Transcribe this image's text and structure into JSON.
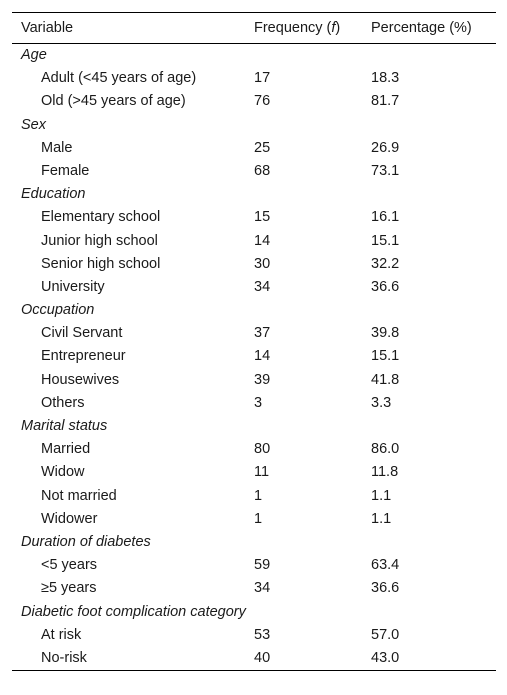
{
  "table": {
    "headers": {
      "variable": "Variable",
      "frequency_prefix": "Frequency (",
      "frequency_symbol": "f",
      "frequency_suffix": ")",
      "percentage": "Percentage (%)"
    },
    "groups": [
      {
        "label": "Age",
        "rows": [
          {
            "label": "Adult (<45 years of age)",
            "frequency": "17",
            "percentage": "18.3"
          },
          {
            "label": "Old (>45 years of age)",
            "frequency": "76",
            "percentage": "81.7"
          }
        ]
      },
      {
        "label": "Sex",
        "rows": [
          {
            "label": "Male",
            "frequency": "25",
            "percentage": "26.9"
          },
          {
            "label": "Female",
            "frequency": "68",
            "percentage": "73.1"
          }
        ]
      },
      {
        "label": "Education",
        "rows": [
          {
            "label": "Elementary school",
            "frequency": "15",
            "percentage": "16.1"
          },
          {
            "label": "Junior high school",
            "frequency": "14",
            "percentage": "15.1"
          },
          {
            "label": "Senior high school",
            "frequency": "30",
            "percentage": "32.2"
          },
          {
            "label": "University",
            "frequency": "34",
            "percentage": "36.6"
          }
        ]
      },
      {
        "label": "Occupation",
        "rows": [
          {
            "label": "Civil Servant",
            "frequency": "37",
            "percentage": "39.8"
          },
          {
            "label": "Entrepreneur",
            "frequency": "14",
            "percentage": "15.1"
          },
          {
            "label": "Housewives",
            "frequency": "39",
            "percentage": "41.8"
          },
          {
            "label": "Others",
            "frequency": "3",
            "percentage": "3.3"
          }
        ]
      },
      {
        "label": "Marital status",
        "rows": [
          {
            "label": "Married",
            "frequency": "80",
            "percentage": "86.0"
          },
          {
            "label": "Widow",
            "frequency": "11",
            "percentage": "11.8"
          },
          {
            "label": "Not married",
            "frequency": "1",
            "percentage": "1.1"
          },
          {
            "label": "Widower",
            "frequency": "1",
            "percentage": "1.1"
          }
        ]
      },
      {
        "label": "Duration of diabetes",
        "rows": [
          {
            "label": "<5 years",
            "frequency": "59",
            "percentage": "63.4"
          },
          {
            "label": "≥5 years",
            "frequency": "34",
            "percentage": "36.6"
          }
        ]
      },
      {
        "label": "Diabetic foot complication category",
        "rows": [
          {
            "label": "At risk",
            "frequency": "53",
            "percentage": "57.0"
          },
          {
            "label": "No-risk",
            "frequency": "40",
            "percentage": "43.0"
          }
        ]
      }
    ]
  }
}
